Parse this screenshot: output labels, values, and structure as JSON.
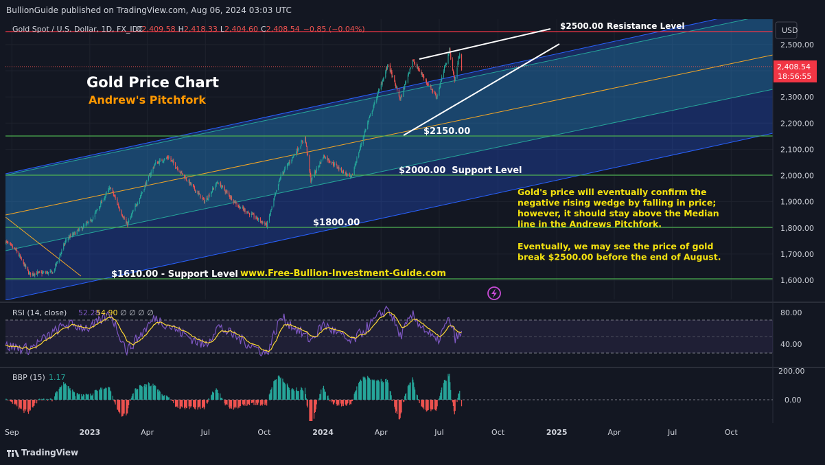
{
  "header": {
    "publisher": "BullionGuide published on TradingView.com, Aug 06, 2024 03:03 UTC"
  },
  "legend": {
    "symbol": "Gold Spot / U.S. Dollar, 1D, FX_IDC",
    "o_label": "O",
    "o": "2,409.58",
    "h_label": "H",
    "h": "2,418.33",
    "l_label": "L",
    "l": "2,404.60",
    "c_label": "C",
    "c": "2,408.54",
    "change": "−0.85 (−0.04%)"
  },
  "currency_button": "USD",
  "last_price": {
    "value": "2,408.54",
    "countdown": "18:56:55"
  },
  "colors": {
    "up": "#26a69a",
    "down": "#ef5350",
    "bg": "#131722",
    "pitchfork_outer": "#2962ff",
    "pitchfork_inner": "#26a69a",
    "median": "#f7a825",
    "hline": "#4caf50",
    "resistance": "#f23645",
    "rsi": "#7e57c2",
    "rsi_ma": "#fdd835"
  },
  "annotations": {
    "title": "Gold Price Chart",
    "subtitle": "Andrew's Pitchfork",
    "resistance_price": "$2500.00",
    "resistance_text": "Resistance Level",
    "p2150": "$2150.00",
    "p2000": "$2000.00  Support Level",
    "p1800": "$1800.00",
    "p1610": "$1610.00 - Support Level",
    "website": "www.Free-Bullion-Investment-Guide.com",
    "note1": [
      "Gold's price will eventually confirm the",
      "negative rising wedge by falling in price;",
      "however, it should stay above the Median",
      "line in the Andrews Pitchfork."
    ],
    "note2": [
      "Eventually, we may see the price of gold",
      "break $2500.00 before the end of August."
    ]
  },
  "rsi_legend": {
    "label": "RSI (14, close)",
    "value": "52.28",
    "ma": "54.90",
    "extra": "∅ ∅ ∅ ∅"
  },
  "bbp_legend": {
    "label": "BBP (15)",
    "value": "1.17"
  },
  "footer": {
    "brand": "TradingView"
  },
  "chart_data": {
    "type": "candlestick",
    "title": "Gold Price Chart",
    "subtitle": "Andrew's Pitchfork",
    "y_ticks": [
      "1,600.00",
      "1,700.00",
      "1,800.00",
      "1,900.00",
      "2,000.00",
      "2,100.00",
      "2,200.00",
      "2,300.00",
      "2,400.00",
      "2,500.00"
    ],
    "y_range": [
      1575,
      2525
    ],
    "x_labels": [
      "Sep",
      "2023",
      "Apr",
      "Jul",
      "Oct",
      "2024",
      "Apr",
      "Jul",
      "Oct",
      "2025",
      "Apr",
      "Jul",
      "Oct"
    ],
    "horizontal_levels": [
      2500,
      2150,
      2000,
      1800,
      1610
    ],
    "price_path": [
      {
        "date": "2022-08-22",
        "price": 1748
      },
      {
        "date": "2022-09-08",
        "price": 1712
      },
      {
        "date": "2022-09-28",
        "price": 1625
      },
      {
        "date": "2022-11-04",
        "price": 1630
      },
      {
        "date": "2022-11-25",
        "price": 1755
      },
      {
        "date": "2023-01-02",
        "price": 1825
      },
      {
        "date": "2023-02-02",
        "price": 1955
      },
      {
        "date": "2023-02-28",
        "price": 1810
      },
      {
        "date": "2023-04-13",
        "price": 2045
      },
      {
        "date": "2023-05-04",
        "price": 2070
      },
      {
        "date": "2023-06-30",
        "price": 1900
      },
      {
        "date": "2023-07-20",
        "price": 1975
      },
      {
        "date": "2023-08-21",
        "price": 1885
      },
      {
        "date": "2023-10-05",
        "price": 1810
      },
      {
        "date": "2023-10-27",
        "price": 2000
      },
      {
        "date": "2023-12-04",
        "price": 2145
      },
      {
        "date": "2023-12-13",
        "price": 1980
      },
      {
        "date": "2024-01-02",
        "price": 2075
      },
      {
        "date": "2024-02-14",
        "price": 1990
      },
      {
        "date": "2024-03-08",
        "price": 2180
      },
      {
        "date": "2024-04-12",
        "price": 2425
      },
      {
        "date": "2024-05-01",
        "price": 2290
      },
      {
        "date": "2024-05-20",
        "price": 2440
      },
      {
        "date": "2024-06-27",
        "price": 2300
      },
      {
        "date": "2024-07-17",
        "price": 2480
      },
      {
        "date": "2024-07-25",
        "price": 2360
      },
      {
        "date": "2024-08-02",
        "price": 2470
      },
      {
        "date": "2024-08-05",
        "price": 2408
      }
    ],
    "rsi_ticks": [
      "80.00",
      "40.00"
    ],
    "rsi_path": [
      {
        "date": "2022-08-22",
        "value": 38
      },
      {
        "date": "2022-09-28",
        "value": 34
      },
      {
        "date": "2022-11-25",
        "value": 65
      },
      {
        "date": "2023-01-02",
        "value": 60
      },
      {
        "date": "2023-02-02",
        "value": 78
      },
      {
        "date": "2023-02-28",
        "value": 32
      },
      {
        "date": "2023-04-13",
        "value": 73
      },
      {
        "date": "2023-06-30",
        "value": 38
      },
      {
        "date": "2023-07-20",
        "value": 62
      },
      {
        "date": "2023-10-05",
        "value": 28
      },
      {
        "date": "2023-10-27",
        "value": 74
      },
      {
        "date": "2023-12-13",
        "value": 45
      },
      {
        "date": "2024-01-02",
        "value": 65
      },
      {
        "date": "2024-02-14",
        "value": 42
      },
      {
        "date": "2024-04-12",
        "value": 86
      },
      {
        "date": "2024-05-01",
        "value": 50
      },
      {
        "date": "2024-05-20",
        "value": 76
      },
      {
        "date": "2024-06-27",
        "value": 42
      },
      {
        "date": "2024-07-17",
        "value": 72
      },
      {
        "date": "2024-07-25",
        "value": 48
      },
      {
        "date": "2024-08-05",
        "value": 52
      }
    ],
    "bbp_ticks": [
      "200.00",
      "0.00"
    ]
  }
}
